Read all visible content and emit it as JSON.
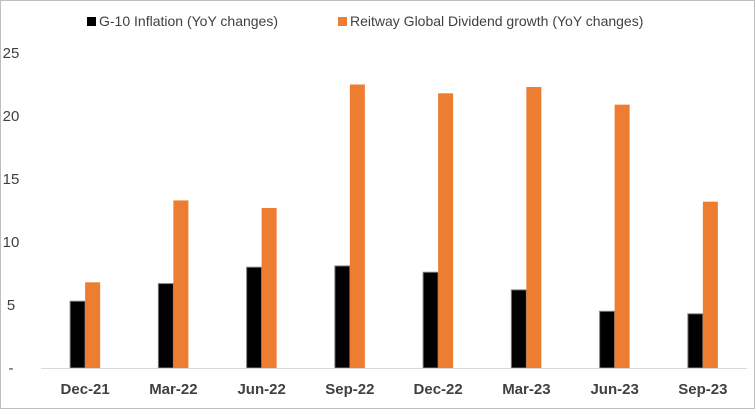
{
  "chart_data": {
    "type": "bar",
    "categories": [
      "Dec-21",
      "Mar-22",
      "Jun-22",
      "Sep-22",
      "Dec-22",
      "Mar-23",
      "Jun-23",
      "Sep-23"
    ],
    "series": [
      {
        "name": "G-10 Inflation (YoY changes)",
        "color": "#000000",
        "values": [
          5.3,
          6.7,
          8.0,
          8.1,
          7.6,
          6.2,
          4.5,
          4.3
        ]
      },
      {
        "name": "Reitway Global Dividend growth (YoY changes)",
        "color": "#ED7D31",
        "values": [
          6.8,
          13.3,
          12.7,
          22.5,
          21.8,
          22.3,
          20.9,
          13.2
        ]
      }
    ],
    "ylim": [
      0,
      25
    ],
    "yticks": [
      0,
      5,
      10,
      15,
      20,
      25
    ],
    "ytick_labels": [
      "-",
      "5",
      "10",
      "15",
      "20",
      "25"
    ],
    "grid": false,
    "legend_position": "top"
  }
}
